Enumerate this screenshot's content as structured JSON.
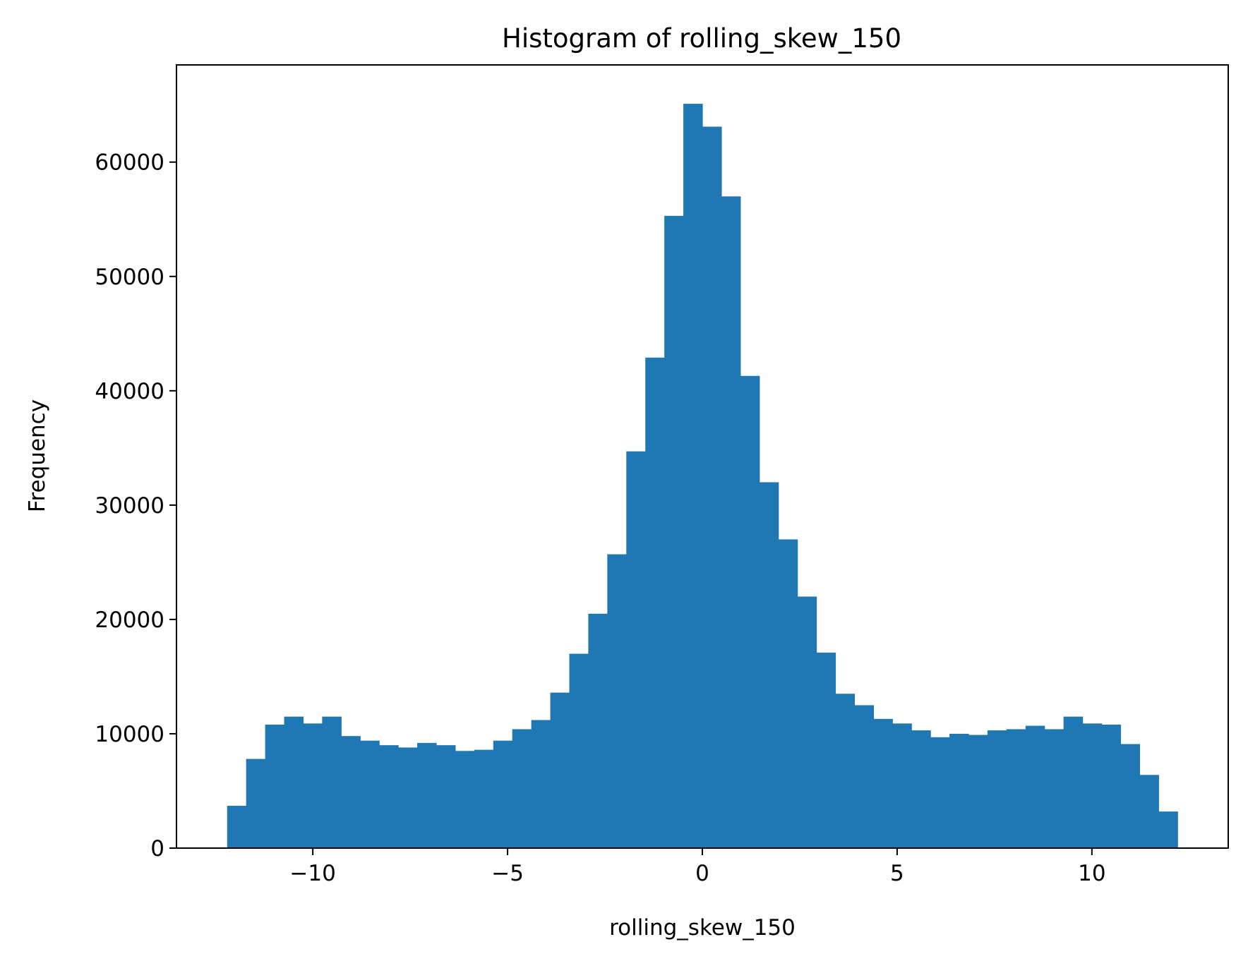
{
  "chart_data": {
    "type": "bar",
    "title": "Histogram of rolling_skew_150",
    "xlabel": "rolling_skew_150",
    "ylabel": "Frequency",
    "xlim": [
      -13.5,
      13.5
    ],
    "ylim": [
      0,
      68500
    ],
    "grid": false,
    "bar_color": "#1f77b4",
    "bin_range": [
      -12.2,
      12.2
    ],
    "bin_width": 0.488,
    "values": [
      3700,
      7800,
      10800,
      11500,
      10900,
      11500,
      9800,
      9400,
      9000,
      8800,
      9200,
      9000,
      8500,
      8600,
      9400,
      10400,
      11200,
      13600,
      17000,
      20500,
      25700,
      34700,
      42900,
      55300,
      65100,
      63100,
      57000,
      41300,
      32000,
      27000,
      22000,
      17100,
      13500,
      12500,
      11300,
      10900,
      10300,
      9700,
      10000,
      9900,
      10300,
      10400,
      10700,
      10400,
      11500,
      10900,
      10800,
      9100,
      6400,
      3200
    ],
    "x_ticks": [
      {
        "value": -10,
        "label": "−10"
      },
      {
        "value": -5,
        "label": "−5"
      },
      {
        "value": 0,
        "label": "0"
      },
      {
        "value": 5,
        "label": "5"
      },
      {
        "value": 10,
        "label": "10"
      }
    ],
    "y_ticks": [
      {
        "value": 0,
        "label": "0"
      },
      {
        "value": 10000,
        "label": "10000"
      },
      {
        "value": 20000,
        "label": "20000"
      },
      {
        "value": 30000,
        "label": "30000"
      },
      {
        "value": 40000,
        "label": "40000"
      },
      {
        "value": 50000,
        "label": "50000"
      },
      {
        "value": 60000,
        "label": "60000"
      }
    ]
  }
}
